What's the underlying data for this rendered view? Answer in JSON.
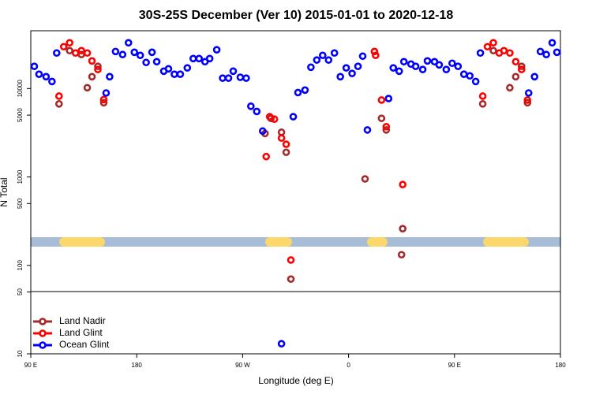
{
  "chart_data": {
    "type": "scatter",
    "title": "30S-25S December (Ver 10)   2015-01-01 to 2020-12-18",
    "xlabel": "Longitude (deg E)",
    "ylabel": "N Total",
    "xlim": [
      90,
      540
    ],
    "xticks": [
      {
        "value": 90,
        "label": "90 E"
      },
      {
        "value": 180,
        "label": "180"
      },
      {
        "value": 270,
        "label": "90 W"
      },
      {
        "value": 360,
        "label": "0"
      },
      {
        "value": 450,
        "label": "90 E"
      },
      {
        "value": 540,
        "label": "180"
      }
    ],
    "ylim": [
      10,
      45000
    ],
    "ylog": true,
    "yticks": [
      10,
      50,
      100,
      500,
      1000,
      5000,
      10000
    ],
    "legend": "bottom-left",
    "series": [
      {
        "name": "Land Nadir",
        "color": "#a52a2a",
        "x": [
          114,
          123,
          133,
          138,
          142,
          147,
          152,
          294,
          289,
          303,
          307,
          311,
          374,
          382,
          388,
          392,
          406,
          405,
          474,
          483,
          497,
          502,
          507,
          512
        ],
        "values": [
          6700,
          26800,
          24200,
          10200,
          13600,
          17800,
          6900,
          4600,
          3100,
          3200,
          1900,
          70,
          950,
          26200,
          4600,
          3400,
          260,
          132,
          6700,
          26800,
          10200,
          13600,
          17800,
          6900
        ]
      },
      {
        "name": "Land Glint",
        "color": "#ff0000",
        "x": [
          114,
          118,
          123,
          128,
          133,
          138,
          142,
          147,
          152,
          290,
          293,
          297,
          303,
          307,
          311,
          382,
          383,
          388,
          392,
          406,
          474,
          478,
          483,
          488,
          492,
          497,
          502,
          507,
          512
        ],
        "values": [
          8200,
          29700,
          32900,
          25200,
          26800,
          25200,
          20500,
          16400,
          7500,
          1700,
          4800,
          4500,
          2750,
          2340,
          115,
          26200,
          23700,
          7400,
          3700,
          820,
          8200,
          29700,
          32900,
          25200,
          26800,
          25200,
          20100,
          16400,
          7400
        ]
      },
      {
        "name": "Ocean Glint",
        "color": "#0000ff",
        "x": [
          93,
          97,
          103,
          108,
          112,
          154,
          157,
          162,
          168,
          173,
          178,
          183,
          188,
          193,
          197,
          203,
          207,
          212,
          217,
          223,
          228,
          233,
          238,
          242,
          248,
          253,
          258,
          262,
          268,
          273,
          277,
          282,
          287,
          313,
          317,
          323,
          328,
          333,
          338,
          343,
          348,
          353,
          358,
          363,
          368,
          372,
          376,
          394,
          398,
          403,
          407,
          413,
          417,
          423,
          427,
          433,
          437,
          443,
          448,
          453,
          458,
          463,
          468,
          472,
          513,
          518,
          523,
          528,
          533,
          537,
          303
        ],
        "values": [
          17800,
          14500,
          13600,
          12000,
          25200,
          8900,
          13600,
          26200,
          24200,
          32900,
          25700,
          23700,
          19700,
          25700,
          20100,
          15700,
          16700,
          14500,
          14500,
          17100,
          21800,
          21800,
          20100,
          21800,
          27400,
          13100,
          13100,
          15700,
          13400,
          13100,
          6300,
          5500,
          3300,
          4800,
          9000,
          9600,
          17400,
          21000,
          23700,
          21000,
          25200,
          13600,
          17100,
          14800,
          17800,
          23200,
          3400,
          7700,
          17100,
          15700,
          20100,
          18900,
          17800,
          16400,
          20500,
          20100,
          18500,
          16400,
          19300,
          17800,
          14500,
          13900,
          12000,
          25200,
          8900,
          13600,
          26200,
          24200,
          32900,
          25700,
          13
        ]
      }
    ]
  }
}
